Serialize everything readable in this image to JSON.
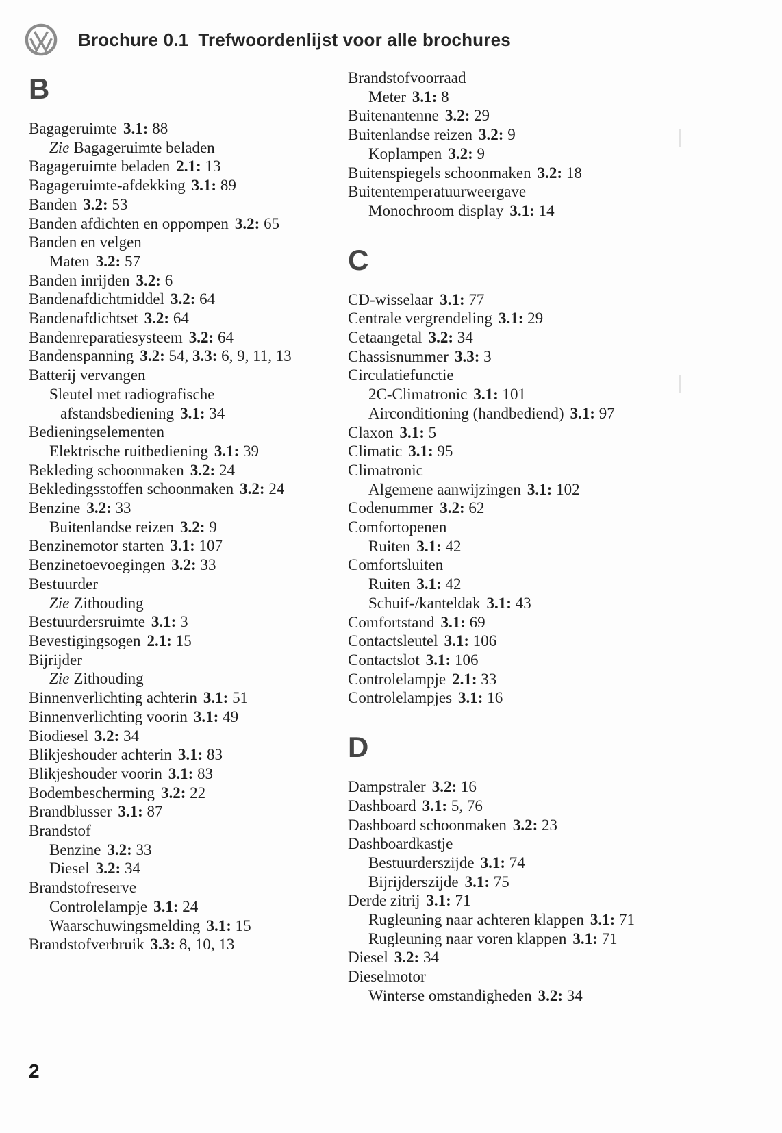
{
  "header": {
    "doc_id": "Brochure 0.1",
    "title": "Trefwoordenlijst voor alle brochures",
    "logo": "vw-logo"
  },
  "footer": {
    "page_number": "2"
  },
  "colors": {
    "text": "#1f1f1f",
    "letter_heading": "#454545",
    "logo_gray": "#8c8c8c",
    "background": "#fdfdfd"
  },
  "columns": [
    {
      "sections": [
        {
          "letter": "B",
          "entries": [
            {
              "indent": 0,
              "term": "Bagageruimte",
              "refs": [
                {
                  "sec": "3.1:",
                  "pages": "88"
                }
              ]
            },
            {
              "indent": 1,
              "zie": "Zie",
              "term": "Bagageruimte beladen"
            },
            {
              "indent": 0,
              "term": "Bagageruimte beladen",
              "refs": [
                {
                  "sec": "2.1:",
                  "pages": "13"
                }
              ]
            },
            {
              "indent": 0,
              "term": "Bagageruimte-afdekking",
              "refs": [
                {
                  "sec": "3.1:",
                  "pages": "89"
                }
              ]
            },
            {
              "indent": 0,
              "term": "Banden",
              "refs": [
                {
                  "sec": "3.2:",
                  "pages": "53"
                }
              ]
            },
            {
              "indent": 0,
              "term": "Banden afdichten en oppompen",
              "refs": [
                {
                  "sec": "3.2:",
                  "pages": "65"
                }
              ]
            },
            {
              "indent": 0,
              "term": "Banden en velgen"
            },
            {
              "indent": 1,
              "term": "Maten",
              "refs": [
                {
                  "sec": "3.2:",
                  "pages": "57"
                }
              ]
            },
            {
              "indent": 0,
              "term": "Banden inrijden",
              "refs": [
                {
                  "sec": "3.2:",
                  "pages": "6"
                }
              ]
            },
            {
              "indent": 0,
              "term": "Bandenafdichtmiddel",
              "refs": [
                {
                  "sec": "3.2:",
                  "pages": "64"
                }
              ]
            },
            {
              "indent": 0,
              "term": "Bandenafdichtset",
              "refs": [
                {
                  "sec": "3.2:",
                  "pages": "64"
                }
              ]
            },
            {
              "indent": 0,
              "term": "Bandenreparatiesysteem",
              "refs": [
                {
                  "sec": "3.2:",
                  "pages": "64"
                }
              ]
            },
            {
              "indent": 0,
              "term": "Bandenspanning",
              "refs": [
                {
                  "sec": "3.2:",
                  "pages": "54"
                },
                {
                  "sec": "3.3:",
                  "pages": "6, 9, 11, 13"
                }
              ]
            },
            {
              "indent": 0,
              "term": "Batterij vervangen"
            },
            {
              "indent": 1,
              "term": "Sleutel met radiografische"
            },
            {
              "indent": 2,
              "term": "afstandsbediening",
              "refs": [
                {
                  "sec": "3.1:",
                  "pages": "34"
                }
              ]
            },
            {
              "indent": 0,
              "term": "Bedieningselementen"
            },
            {
              "indent": 1,
              "term": "Elektrische ruitbediening",
              "refs": [
                {
                  "sec": "3.1:",
                  "pages": "39"
                }
              ]
            },
            {
              "indent": 0,
              "term": "Bekleding schoonmaken",
              "refs": [
                {
                  "sec": "3.2:",
                  "pages": "24"
                }
              ]
            },
            {
              "indent": 0,
              "term": "Bekledingsstoffen schoonmaken",
              "refs": [
                {
                  "sec": "3.2:",
                  "pages": "24"
                }
              ]
            },
            {
              "indent": 0,
              "term": "Benzine",
              "refs": [
                {
                  "sec": "3.2:",
                  "pages": "33"
                }
              ]
            },
            {
              "indent": 1,
              "term": "Buitenlandse reizen",
              "refs": [
                {
                  "sec": "3.2:",
                  "pages": "9"
                }
              ]
            },
            {
              "indent": 0,
              "term": "Benzinemotor starten",
              "refs": [
                {
                  "sec": "3.1:",
                  "pages": "107"
                }
              ]
            },
            {
              "indent": 0,
              "term": "Benzinetoevoegingen",
              "refs": [
                {
                  "sec": "3.2:",
                  "pages": "33"
                }
              ]
            },
            {
              "indent": 0,
              "term": "Bestuurder"
            },
            {
              "indent": 1,
              "zie": "Zie",
              "term": "Zithouding"
            },
            {
              "indent": 0,
              "term": "Bestuurdersruimte",
              "refs": [
                {
                  "sec": "3.1:",
                  "pages": "3"
                }
              ]
            },
            {
              "indent": 0,
              "term": "Bevestigingsogen",
              "refs": [
                {
                  "sec": "2.1:",
                  "pages": "15"
                }
              ]
            },
            {
              "indent": 0,
              "term": "Bijrijder"
            },
            {
              "indent": 1,
              "zie": "Zie",
              "term": "Zithouding"
            },
            {
              "indent": 0,
              "term": "Binnenverlichting achterin",
              "refs": [
                {
                  "sec": "3.1:",
                  "pages": "51"
                }
              ]
            },
            {
              "indent": 0,
              "term": "Binnenverlichting voorin",
              "refs": [
                {
                  "sec": "3.1:",
                  "pages": "49"
                }
              ]
            },
            {
              "indent": 0,
              "term": "Biodiesel",
              "refs": [
                {
                  "sec": "3.2:",
                  "pages": "34"
                }
              ]
            },
            {
              "indent": 0,
              "term": "Blikjeshouder achterin",
              "refs": [
                {
                  "sec": "3.1:",
                  "pages": "83"
                }
              ]
            },
            {
              "indent": 0,
              "term": "Blikjeshouder voorin",
              "refs": [
                {
                  "sec": "3.1:",
                  "pages": "83"
                }
              ]
            },
            {
              "indent": 0,
              "term": "Bodembescherming",
              "refs": [
                {
                  "sec": "3.2:",
                  "pages": "22"
                }
              ]
            },
            {
              "indent": 0,
              "term": "Brandblusser",
              "refs": [
                {
                  "sec": "3.1:",
                  "pages": "87"
                }
              ]
            },
            {
              "indent": 0,
              "term": "Brandstof"
            },
            {
              "indent": 1,
              "term": "Benzine",
              "refs": [
                {
                  "sec": "3.2:",
                  "pages": "33"
                }
              ]
            },
            {
              "indent": 1,
              "term": "Diesel",
              "refs": [
                {
                  "sec": "3.2:",
                  "pages": "34"
                }
              ]
            },
            {
              "indent": 0,
              "term": "Brandstofreserve"
            },
            {
              "indent": 1,
              "term": "Controlelampje",
              "refs": [
                {
                  "sec": "3.1:",
                  "pages": "24"
                }
              ]
            },
            {
              "indent": 1,
              "term": "Waarschuwingsmelding",
              "refs": [
                {
                  "sec": "3.1:",
                  "pages": "15"
                }
              ]
            },
            {
              "indent": 0,
              "term": "Brandstofverbruik",
              "refs": [
                {
                  "sec": "3.3:",
                  "pages": "8, 10, 13"
                }
              ]
            }
          ]
        }
      ]
    },
    {
      "sections": [
        {
          "letter": null,
          "entries": [
            {
              "indent": 0,
              "term": "Brandstofvoorraad"
            },
            {
              "indent": 1,
              "term": "Meter",
              "refs": [
                {
                  "sec": "3.1:",
                  "pages": "8"
                }
              ]
            },
            {
              "indent": 0,
              "term": "Buitenantenne",
              "refs": [
                {
                  "sec": "3.2:",
                  "pages": "29"
                }
              ]
            },
            {
              "indent": 0,
              "term": "Buitenlandse reizen",
              "refs": [
                {
                  "sec": "3.2:",
                  "pages": "9"
                }
              ]
            },
            {
              "indent": 1,
              "term": "Koplampen",
              "refs": [
                {
                  "sec": "3.2:",
                  "pages": "9"
                }
              ]
            },
            {
              "indent": 0,
              "term": "Buitenspiegels schoonmaken",
              "refs": [
                {
                  "sec": "3.2:",
                  "pages": "18"
                }
              ]
            },
            {
              "indent": 0,
              "term": "Buitentemperatuurweergave"
            },
            {
              "indent": 1,
              "term": "Monochroom display",
              "refs": [
                {
                  "sec": "3.1:",
                  "pages": "14"
                }
              ]
            }
          ]
        },
        {
          "letter": "C",
          "entries": [
            {
              "indent": 0,
              "term": "CD-wisselaar",
              "refs": [
                {
                  "sec": "3.1:",
                  "pages": "77"
                }
              ]
            },
            {
              "indent": 0,
              "term": "Centrale vergrendeling",
              "refs": [
                {
                  "sec": "3.1:",
                  "pages": "29"
                }
              ]
            },
            {
              "indent": 0,
              "term": "Cetaangetal",
              "refs": [
                {
                  "sec": "3.2:",
                  "pages": "34"
                }
              ]
            },
            {
              "indent": 0,
              "term": "Chassisnummer",
              "refs": [
                {
                  "sec": "3.3:",
                  "pages": "3"
                }
              ]
            },
            {
              "indent": 0,
              "term": "Circulatiefunctie"
            },
            {
              "indent": 1,
              "term": "2C-Climatronic",
              "refs": [
                {
                  "sec": "3.1:",
                  "pages": "101"
                }
              ]
            },
            {
              "indent": 1,
              "term": "Airconditioning (handbediend)",
              "refs": [
                {
                  "sec": "3.1:",
                  "pages": "97"
                }
              ]
            },
            {
              "indent": 0,
              "term": "Claxon",
              "refs": [
                {
                  "sec": "3.1:",
                  "pages": "5"
                }
              ]
            },
            {
              "indent": 0,
              "term": "Climatic",
              "refs": [
                {
                  "sec": "3.1:",
                  "pages": "95"
                }
              ]
            },
            {
              "indent": 0,
              "term": "Climatronic"
            },
            {
              "indent": 1,
              "term": "Algemene aanwijzingen",
              "refs": [
                {
                  "sec": "3.1:",
                  "pages": "102"
                }
              ]
            },
            {
              "indent": 0,
              "term": "Codenummer",
              "refs": [
                {
                  "sec": "3.2:",
                  "pages": "62"
                }
              ]
            },
            {
              "indent": 0,
              "term": "Comfortopenen"
            },
            {
              "indent": 1,
              "term": "Ruiten",
              "refs": [
                {
                  "sec": "3.1:",
                  "pages": "42"
                }
              ]
            },
            {
              "indent": 0,
              "term": "Comfortsluiten"
            },
            {
              "indent": 1,
              "term": "Ruiten",
              "refs": [
                {
                  "sec": "3.1:",
                  "pages": "42"
                }
              ]
            },
            {
              "indent": 1,
              "term": "Schuif-/kanteldak",
              "refs": [
                {
                  "sec": "3.1:",
                  "pages": "43"
                }
              ]
            },
            {
              "indent": 0,
              "term": "Comfortstand",
              "refs": [
                {
                  "sec": "3.1:",
                  "pages": "69"
                }
              ]
            },
            {
              "indent": 0,
              "term": "Contactsleutel",
              "refs": [
                {
                  "sec": "3.1:",
                  "pages": "106"
                }
              ]
            },
            {
              "indent": 0,
              "term": "Contactslot",
              "refs": [
                {
                  "sec": "3.1:",
                  "pages": "106"
                }
              ]
            },
            {
              "indent": 0,
              "term": "Controlelampje",
              "refs": [
                {
                  "sec": "2.1:",
                  "pages": "33"
                }
              ]
            },
            {
              "indent": 0,
              "term": "Controlelampjes",
              "refs": [
                {
                  "sec": "3.1:",
                  "pages": "16"
                }
              ]
            }
          ]
        },
        {
          "letter": "D",
          "entries": [
            {
              "indent": 0,
              "term": "Dampstraler",
              "refs": [
                {
                  "sec": "3.2:",
                  "pages": "16"
                }
              ]
            },
            {
              "indent": 0,
              "term": "Dashboard",
              "refs": [
                {
                  "sec": "3.1:",
                  "pages": "5, 76"
                }
              ]
            },
            {
              "indent": 0,
              "term": "Dashboard schoonmaken",
              "refs": [
                {
                  "sec": "3.2:",
                  "pages": "23"
                }
              ]
            },
            {
              "indent": 0,
              "term": "Dashboardkastje"
            },
            {
              "indent": 1,
              "term": "Bestuurderszijde",
              "refs": [
                {
                  "sec": "3.1:",
                  "pages": "74"
                }
              ]
            },
            {
              "indent": 1,
              "term": "Bijrijderszijde",
              "refs": [
                {
                  "sec": "3.1:",
                  "pages": "75"
                }
              ]
            },
            {
              "indent": 0,
              "term": "Derde zitrij",
              "refs": [
                {
                  "sec": "3.1:",
                  "pages": "71"
                }
              ]
            },
            {
              "indent": 1,
              "term": "Rugleuning naar achteren klappen",
              "refs": [
                {
                  "sec": "3.1:",
                  "pages": "71"
                }
              ]
            },
            {
              "indent": 1,
              "term": "Rugleuning naar voren klappen",
              "refs": [
                {
                  "sec": "3.1:",
                  "pages": "71"
                }
              ]
            },
            {
              "indent": 0,
              "term": "Diesel",
              "refs": [
                {
                  "sec": "3.2:",
                  "pages": "34"
                }
              ]
            },
            {
              "indent": 0,
              "term": "Dieselmotor"
            },
            {
              "indent": 1,
              "term": "Winterse omstandigheden",
              "refs": [
                {
                  "sec": "3.2:",
                  "pages": "34"
                }
              ]
            }
          ]
        }
      ]
    }
  ]
}
